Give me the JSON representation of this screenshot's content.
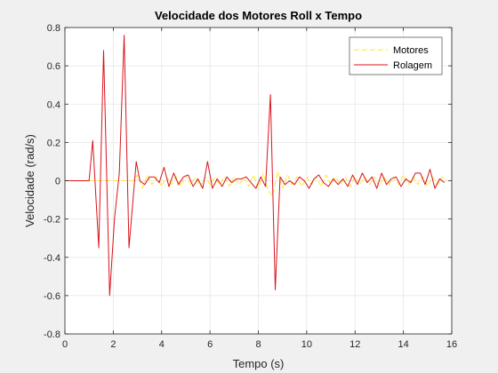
{
  "chart_data": {
    "type": "line",
    "title": "Velocidade dos Motores Roll x Tempo",
    "xlabel": "Tempo (s)",
    "ylabel": "Velocidade (rad/s)",
    "xlim": [
      0,
      16
    ],
    "ylim": [
      -0.8,
      0.8
    ],
    "xticks": [
      0,
      2,
      4,
      6,
      8,
      10,
      12,
      14,
      16
    ],
    "xtick_labels": [
      "0",
      "2",
      "4",
      "6",
      "8",
      "10",
      "12",
      "14",
      "16"
    ],
    "yticks": [
      -0.8,
      -0.6,
      -0.4,
      -0.2,
      0,
      0.2,
      0.4,
      0.6,
      0.8
    ],
    "ytick_labels": [
      "-0.8",
      "-0.6",
      "-0.4",
      "-0.2",
      "0",
      "0.2",
      "0.4",
      "0.6",
      "0.8"
    ],
    "grid": true,
    "legend": "top-right",
    "series": [
      {
        "name": "Motores",
        "color": "#ffe629",
        "style": "dashed",
        "x": [
          0,
          1.0,
          2.0,
          2.8,
          3.0,
          3.2,
          3.4,
          3.6,
          3.8,
          4.0,
          4.2,
          4.4,
          4.6,
          4.8,
          5.0,
          5.2,
          5.4,
          5.6,
          5.8,
          6.0,
          6.2,
          6.4,
          6.6,
          6.8,
          7.0,
          7.2,
          7.4,
          7.6,
          7.8,
          8.0,
          8.2,
          8.4,
          8.6,
          8.8,
          9.0,
          9.2,
          9.4,
          9.6,
          9.8,
          10.0,
          10.2,
          10.4,
          10.6,
          10.8,
          11.0,
          11.2,
          11.4,
          11.6,
          11.8,
          12.0,
          12.2,
          12.4,
          12.6,
          12.8,
          13.0,
          13.2,
          13.4,
          13.6,
          13.8,
          14.0,
          14.2,
          14.4,
          14.6,
          14.8,
          15.0,
          15.2,
          15.4,
          15.6,
          15.8
        ],
        "values": [
          0,
          0,
          0,
          0,
          0.03,
          -0.04,
          0.03,
          -0.02,
          0.02,
          -0.03,
          0.02,
          -0.02,
          0.02,
          -0.03,
          0.03,
          -0.02,
          0.02,
          -0.03,
          0.02,
          -0.02,
          0.02,
          -0.02,
          0.02,
          -0.03,
          0.02,
          -0.02,
          0.02,
          -0.03,
          0.03,
          -0.04,
          0.04,
          -0.05,
          -0.08,
          0.05,
          -0.04,
          0.03,
          -0.02,
          0.02,
          -0.03,
          0.02,
          -0.02,
          0.02,
          -0.03,
          0.03,
          -0.02,
          0.02,
          -0.02,
          0.02,
          -0.03,
          0.02,
          -0.02,
          0.02,
          -0.02,
          0.02,
          -0.03,
          0.02,
          -0.02,
          0.02,
          -0.02,
          0.03,
          -0.02,
          0.02,
          -0.02,
          0.02,
          -0.03,
          0.02,
          -0.02,
          0.02,
          0
        ]
      },
      {
        "name": "Rolagem",
        "color": "#d9141e",
        "style": "solid",
        "x": [
          0,
          1.0,
          1.15,
          1.4,
          1.6,
          1.85,
          2.05,
          2.25,
          2.45,
          2.65,
          2.95,
          3.1,
          3.3,
          3.5,
          3.7,
          3.9,
          4.1,
          4.3,
          4.5,
          4.7,
          4.9,
          5.1,
          5.3,
          5.5,
          5.7,
          5.9,
          6.1,
          6.3,
          6.5,
          6.7,
          6.9,
          7.1,
          7.3,
          7.5,
          7.7,
          7.9,
          8.1,
          8.3,
          8.5,
          8.7,
          8.9,
          9.1,
          9.3,
          9.5,
          9.7,
          9.9,
          10.1,
          10.3,
          10.5,
          10.7,
          10.9,
          11.1,
          11.3,
          11.5,
          11.7,
          11.9,
          12.1,
          12.3,
          12.5,
          12.7,
          12.9,
          13.1,
          13.3,
          13.5,
          13.7,
          13.9,
          14.1,
          14.3,
          14.5,
          14.7,
          14.9,
          15.1,
          15.3,
          15.5,
          15.7
        ],
        "values": [
          0,
          0,
          0.21,
          -0.35,
          0.68,
          -0.6,
          -0.2,
          0.04,
          0.76,
          -0.35,
          0.1,
          0.0,
          -0.02,
          0.02,
          0.02,
          -0.01,
          0.07,
          -0.03,
          0.04,
          -0.02,
          0.02,
          0.03,
          -0.03,
          0.01,
          -0.04,
          0.1,
          -0.04,
          0.01,
          -0.03,
          0.02,
          -0.01,
          0.01,
          0.01,
          0.02,
          -0.01,
          -0.04,
          0.02,
          -0.03,
          0.45,
          -0.57,
          0.02,
          -0.02,
          0.0,
          -0.02,
          0.02,
          0.0,
          -0.04,
          0.01,
          0.03,
          -0.01,
          -0.03,
          0.01,
          -0.02,
          0.01,
          -0.03,
          0.03,
          -0.02,
          0.04,
          -0.01,
          0.02,
          -0.04,
          0.04,
          -0.02,
          0.01,
          0.02,
          -0.03,
          0.01,
          -0.01,
          0.04,
          0.04,
          -0.02,
          0.06,
          -0.04,
          0.01,
          -0.01
        ]
      }
    ]
  }
}
